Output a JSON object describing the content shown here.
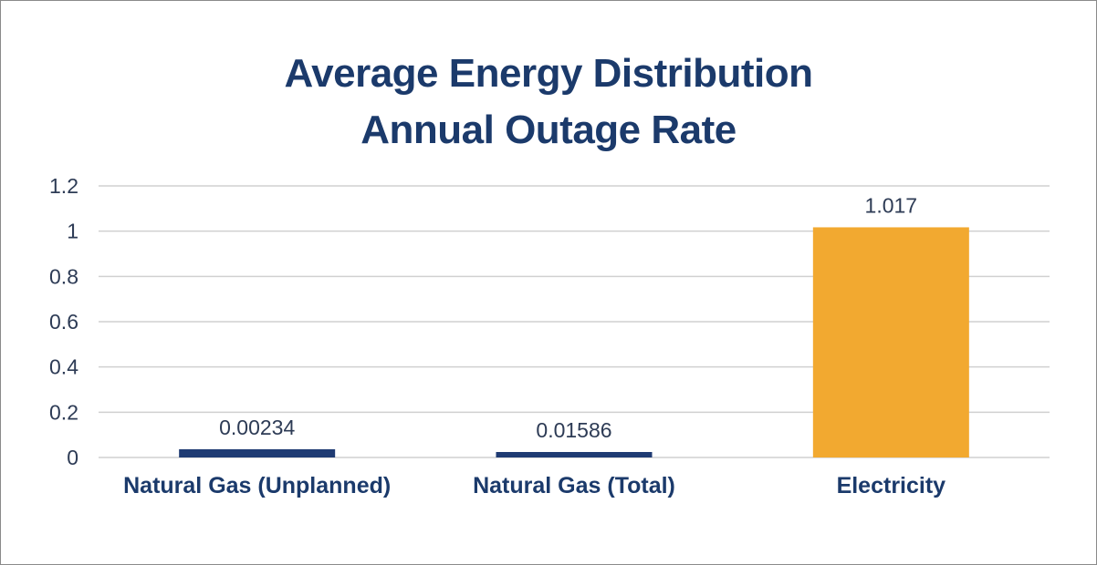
{
  "chart_data": {
    "type": "bar",
    "title_line1": "Average Energy Distribution",
    "title_line2": "Annual Outage Rate",
    "categories": [
      "Natural Gas (Unplanned)",
      "Natural Gas (Total)",
      "Electricity"
    ],
    "values": [
      0.00234,
      0.01586,
      1.017
    ],
    "data_labels": [
      "0.00234",
      "0.01586",
      "1.017"
    ],
    "bar_colors": [
      "#1f3b73",
      "#1f3b73",
      "#f2a930"
    ],
    "ylim": [
      0,
      1.2
    ],
    "yticks": [
      0,
      0.2,
      0.4,
      0.6,
      0.8,
      1,
      1.2
    ],
    "ytick_labels": [
      "0",
      "0.2",
      "0.4",
      "0.6",
      "0.8",
      "1",
      "1.2"
    ],
    "grid": true,
    "xlabel": "",
    "ylabel": ""
  }
}
